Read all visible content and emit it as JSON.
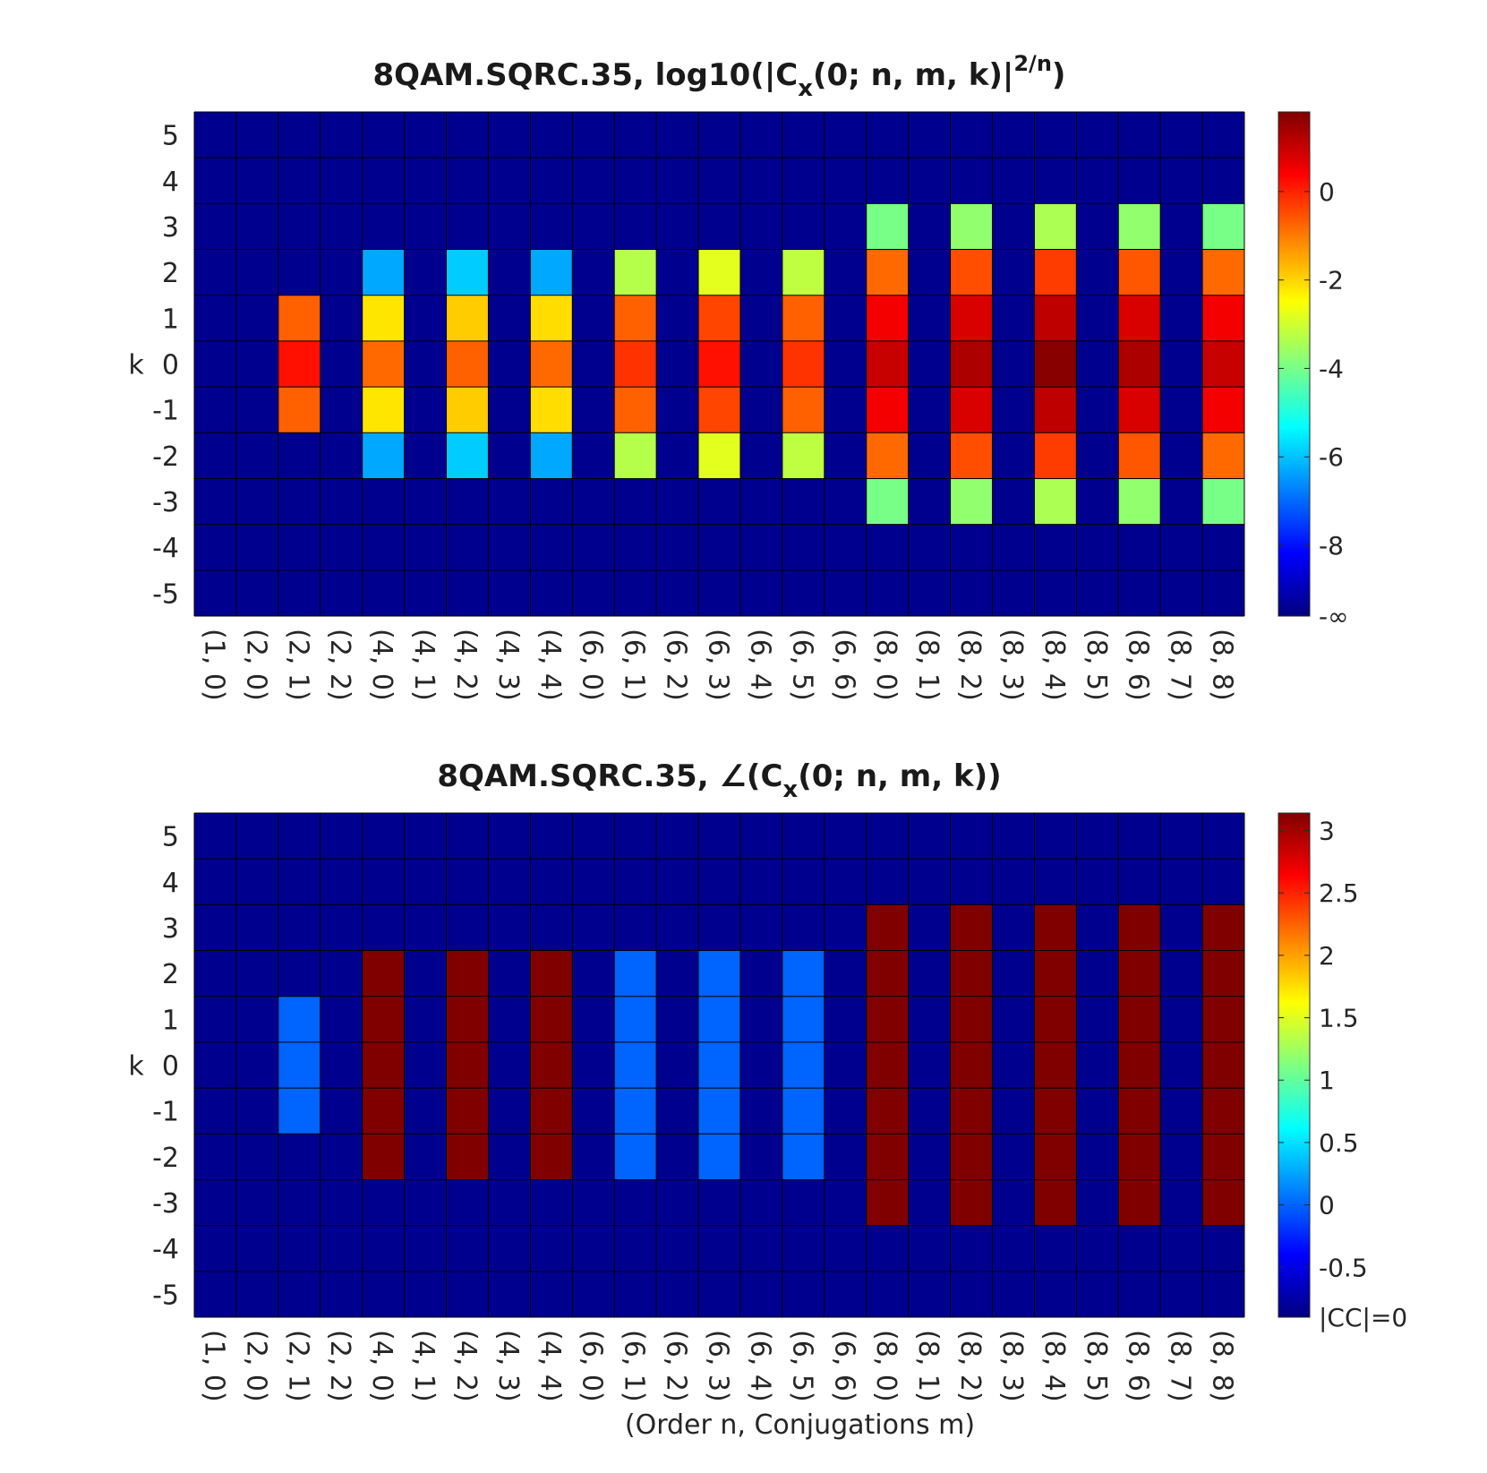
{
  "chart_data": [
    {
      "type": "heatmap",
      "title_prefix": "8QAM.SQRC.35, log10(|C",
      "title_sub": "x",
      "title_mid": "(0; n, m, k)|",
      "title_sup": "2/n",
      "title_suffix": ")",
      "xlabel": "",
      "ylabel": "k",
      "x_categories": [
        "(1, 0)",
        "(2, 0)",
        "(2, 1)",
        "(2, 2)",
        "(4, 0)",
        "(4, 1)",
        "(4, 2)",
        "(4, 3)",
        "(4, 4)",
        "(6, 0)",
        "(6, 1)",
        "(6, 2)",
        "(6, 3)",
        "(6, 4)",
        "(6, 5)",
        "(6, 6)",
        "(8, 0)",
        "(8, 1)",
        "(8, 2)",
        "(8, 3)",
        "(8, 4)",
        "(8, 5)",
        "(8, 6)",
        "(8, 7)",
        "(8, 8)"
      ],
      "y_categories": [
        "5",
        "4",
        "3",
        "2",
        "1",
        "0",
        "-1",
        "-2",
        "-3",
        "-4",
        "-5"
      ],
      "colorbar": {
        "colormap": "jet",
        "range": [
          -9.6,
          1.8
        ],
        "ticks": [
          0,
          -2,
          -4,
          -6,
          -8
        ],
        "tick_labels": [
          "0",
          "-2",
          "-4",
          "-6",
          "-8"
        ],
        "bottom_label": "-∞"
      },
      "null_color": "#00008f",
      "cells": [
        {
          "x": "(2, 1)",
          "k": 1,
          "value": -0.7
        },
        {
          "x": "(2, 1)",
          "k": 0,
          "value": 0.2
        },
        {
          "x": "(2, 1)",
          "k": -1,
          "value": -0.7
        },
        {
          "x": "(4, 0)",
          "k": 2,
          "value": -6.3
        },
        {
          "x": "(4, 0)",
          "k": 1,
          "value": -2.2
        },
        {
          "x": "(4, 0)",
          "k": 0,
          "value": -0.8
        },
        {
          "x": "(4, 0)",
          "k": -1,
          "value": -2.2
        },
        {
          "x": "(4, 0)",
          "k": -2,
          "value": -6.3
        },
        {
          "x": "(4, 2)",
          "k": 2,
          "value": -5.9
        },
        {
          "x": "(4, 2)",
          "k": 1,
          "value": -1.9
        },
        {
          "x": "(4, 2)",
          "k": 0,
          "value": -0.7
        },
        {
          "x": "(4, 2)",
          "k": -1,
          "value": -1.9
        },
        {
          "x": "(4, 2)",
          "k": -2,
          "value": -5.9
        },
        {
          "x": "(4, 4)",
          "k": 2,
          "value": -6.3
        },
        {
          "x": "(4, 4)",
          "k": 1,
          "value": -2.1
        },
        {
          "x": "(4, 4)",
          "k": 0,
          "value": -0.8
        },
        {
          "x": "(4, 4)",
          "k": -1,
          "value": -2.1
        },
        {
          "x": "(4, 4)",
          "k": -2,
          "value": -6.3
        },
        {
          "x": "(6, 1)",
          "k": 2,
          "value": -3.3
        },
        {
          "x": "(6, 1)",
          "k": 1,
          "value": -0.7
        },
        {
          "x": "(6, 1)",
          "k": 0,
          "value": -0.2
        },
        {
          "x": "(6, 1)",
          "k": -1,
          "value": -0.7
        },
        {
          "x": "(6, 1)",
          "k": -2,
          "value": -3.3
        },
        {
          "x": "(6, 3)",
          "k": 2,
          "value": -2.8
        },
        {
          "x": "(6, 3)",
          "k": 1,
          "value": -0.4
        },
        {
          "x": "(6, 3)",
          "k": 0,
          "value": 0.2
        },
        {
          "x": "(6, 3)",
          "k": -1,
          "value": -0.4
        },
        {
          "x": "(6, 3)",
          "k": -2,
          "value": -2.8
        },
        {
          "x": "(6, 5)",
          "k": 2,
          "value": -3.2
        },
        {
          "x": "(6, 5)",
          "k": 1,
          "value": -0.7
        },
        {
          "x": "(6, 5)",
          "k": 0,
          "value": -0.2
        },
        {
          "x": "(6, 5)",
          "k": -1,
          "value": -0.7
        },
        {
          "x": "(6, 5)",
          "k": -2,
          "value": -3.2
        },
        {
          "x": "(8, 0)",
          "k": 3,
          "value": -4.0
        },
        {
          "x": "(8, 0)",
          "k": 2,
          "value": -0.8
        },
        {
          "x": "(8, 0)",
          "k": 1,
          "value": 0.5
        },
        {
          "x": "(8, 0)",
          "k": 0,
          "value": 1.0
        },
        {
          "x": "(8, 0)",
          "k": -1,
          "value": 0.5
        },
        {
          "x": "(8, 0)",
          "k": -2,
          "value": -0.8
        },
        {
          "x": "(8, 0)",
          "k": -3,
          "value": -4.0
        },
        {
          "x": "(8, 2)",
          "k": 3,
          "value": -3.7
        },
        {
          "x": "(8, 2)",
          "k": 2,
          "value": -0.5
        },
        {
          "x": "(8, 2)",
          "k": 1,
          "value": 0.8
        },
        {
          "x": "(8, 2)",
          "k": 0,
          "value": 1.3
        },
        {
          "x": "(8, 2)",
          "k": -1,
          "value": 0.8
        },
        {
          "x": "(8, 2)",
          "k": -2,
          "value": -0.5
        },
        {
          "x": "(8, 2)",
          "k": -3,
          "value": -3.7
        },
        {
          "x": "(8, 4)",
          "k": 3,
          "value": -3.4
        },
        {
          "x": "(8, 4)",
          "k": 2,
          "value": -0.3
        },
        {
          "x": "(8, 4)",
          "k": 1,
          "value": 1.1
        },
        {
          "x": "(8, 4)",
          "k": 0,
          "value": 1.7
        },
        {
          "x": "(8, 4)",
          "k": -1,
          "value": 1.1
        },
        {
          "x": "(8, 4)",
          "k": -2,
          "value": -0.3
        },
        {
          "x": "(8, 4)",
          "k": -3,
          "value": -3.4
        },
        {
          "x": "(8, 6)",
          "k": 3,
          "value": -3.7
        },
        {
          "x": "(8, 6)",
          "k": 2,
          "value": -0.6
        },
        {
          "x": "(8, 6)",
          "k": 1,
          "value": 0.8
        },
        {
          "x": "(8, 6)",
          "k": 0,
          "value": 1.3
        },
        {
          "x": "(8, 6)",
          "k": -1,
          "value": 0.8
        },
        {
          "x": "(8, 6)",
          "k": -2,
          "value": -0.6
        },
        {
          "x": "(8, 6)",
          "k": -3,
          "value": -3.7
        },
        {
          "x": "(8, 8)",
          "k": 3,
          "value": -4.0
        },
        {
          "x": "(8, 8)",
          "k": 2,
          "value": -0.8
        },
        {
          "x": "(8, 8)",
          "k": 1,
          "value": 0.5
        },
        {
          "x": "(8, 8)",
          "k": 0,
          "value": 1.0
        },
        {
          "x": "(8, 8)",
          "k": -1,
          "value": 0.5
        },
        {
          "x": "(8, 8)",
          "k": -2,
          "value": -0.8
        },
        {
          "x": "(8, 8)",
          "k": -3,
          "value": -4.0
        }
      ]
    },
    {
      "type": "heatmap",
      "title_prefix": "8QAM.SQRC.35, ∠(C",
      "title_sub": "x",
      "title_mid": "(0; n, m, k))",
      "title_sup": "",
      "title_suffix": "",
      "xlabel": "(Order n, Conjugations m)",
      "ylabel": "k",
      "x_categories": [
        "(1, 0)",
        "(2, 0)",
        "(2, 1)",
        "(2, 2)",
        "(4, 0)",
        "(4, 1)",
        "(4, 2)",
        "(4, 3)",
        "(4, 4)",
        "(6, 0)",
        "(6, 1)",
        "(6, 2)",
        "(6, 3)",
        "(6, 4)",
        "(6, 5)",
        "(6, 6)",
        "(8, 0)",
        "(8, 1)",
        "(8, 2)",
        "(8, 3)",
        "(8, 4)",
        "(8, 5)",
        "(8, 6)",
        "(8, 7)",
        "(8, 8)"
      ],
      "y_categories": [
        "5",
        "4",
        "3",
        "2",
        "1",
        "0",
        "-1",
        "-2",
        "-3",
        "-4",
        "-5"
      ],
      "colorbar": {
        "colormap": "jet",
        "range": [
          -0.9,
          3.14
        ],
        "ticks": [
          3,
          2.5,
          2,
          1.5,
          1,
          0.5,
          0,
          -0.5
        ],
        "tick_labels": [
          "3",
          "2.5",
          "2",
          "1.5",
          "1",
          "0.5",
          "0",
          "-0.5"
        ],
        "bottom_label": "|CC|=0"
      },
      "null_color": "#00008f",
      "cells": [
        {
          "x": "(2, 1)",
          "k": 1,
          "value": 0
        },
        {
          "x": "(2, 1)",
          "k": 0,
          "value": 0
        },
        {
          "x": "(2, 1)",
          "k": -1,
          "value": 0
        },
        {
          "x": "(4, 0)",
          "k": 2,
          "value": 3.14
        },
        {
          "x": "(4, 0)",
          "k": 1,
          "value": 3.14
        },
        {
          "x": "(4, 0)",
          "k": 0,
          "value": 3.14
        },
        {
          "x": "(4, 0)",
          "k": -1,
          "value": 3.14
        },
        {
          "x": "(4, 0)",
          "k": -2,
          "value": 3.14
        },
        {
          "x": "(4, 2)",
          "k": 2,
          "value": 3.14
        },
        {
          "x": "(4, 2)",
          "k": 1,
          "value": 3.14
        },
        {
          "x": "(4, 2)",
          "k": 0,
          "value": 3.14
        },
        {
          "x": "(4, 2)",
          "k": -1,
          "value": 3.14
        },
        {
          "x": "(4, 2)",
          "k": -2,
          "value": 3.14
        },
        {
          "x": "(4, 4)",
          "k": 2,
          "value": 3.14
        },
        {
          "x": "(4, 4)",
          "k": 1,
          "value": 3.14
        },
        {
          "x": "(4, 4)",
          "k": 0,
          "value": 3.14
        },
        {
          "x": "(4, 4)",
          "k": -1,
          "value": 3.14
        },
        {
          "x": "(4, 4)",
          "k": -2,
          "value": 3.14
        },
        {
          "x": "(6, 1)",
          "k": 2,
          "value": 0
        },
        {
          "x": "(6, 1)",
          "k": 1,
          "value": 0
        },
        {
          "x": "(6, 1)",
          "k": 0,
          "value": 0
        },
        {
          "x": "(6, 1)",
          "k": -1,
          "value": 0
        },
        {
          "x": "(6, 1)",
          "k": -2,
          "value": 0
        },
        {
          "x": "(6, 3)",
          "k": 2,
          "value": 0
        },
        {
          "x": "(6, 3)",
          "k": 1,
          "value": 0
        },
        {
          "x": "(6, 3)",
          "k": 0,
          "value": 0
        },
        {
          "x": "(6, 3)",
          "k": -1,
          "value": 0
        },
        {
          "x": "(6, 3)",
          "k": -2,
          "value": 0
        },
        {
          "x": "(6, 5)",
          "k": 2,
          "value": 0
        },
        {
          "x": "(6, 5)",
          "k": 1,
          "value": 0
        },
        {
          "x": "(6, 5)",
          "k": 0,
          "value": 0
        },
        {
          "x": "(6, 5)",
          "k": -1,
          "value": 0
        },
        {
          "x": "(6, 5)",
          "k": -2,
          "value": 0
        },
        {
          "x": "(8, 0)",
          "k": 3,
          "value": 3.14
        },
        {
          "x": "(8, 0)",
          "k": 2,
          "value": 3.14
        },
        {
          "x": "(8, 0)",
          "k": 1,
          "value": 3.14
        },
        {
          "x": "(8, 0)",
          "k": 0,
          "value": 3.14
        },
        {
          "x": "(8, 0)",
          "k": -1,
          "value": 3.14
        },
        {
          "x": "(8, 0)",
          "k": -2,
          "value": 3.14
        },
        {
          "x": "(8, 0)",
          "k": -3,
          "value": 3.14
        },
        {
          "x": "(8, 2)",
          "k": 3,
          "value": 3.14
        },
        {
          "x": "(8, 2)",
          "k": 2,
          "value": 3.14
        },
        {
          "x": "(8, 2)",
          "k": 1,
          "value": 3.14
        },
        {
          "x": "(8, 2)",
          "k": 0,
          "value": 3.14
        },
        {
          "x": "(8, 2)",
          "k": -1,
          "value": 3.14
        },
        {
          "x": "(8, 2)",
          "k": -2,
          "value": 3.14
        },
        {
          "x": "(8, 2)",
          "k": -3,
          "value": 3.14
        },
        {
          "x": "(8, 4)",
          "k": 3,
          "value": 3.14
        },
        {
          "x": "(8, 4)",
          "k": 2,
          "value": 3.14
        },
        {
          "x": "(8, 4)",
          "k": 1,
          "value": 3.14
        },
        {
          "x": "(8, 4)",
          "k": 0,
          "value": 3.14
        },
        {
          "x": "(8, 4)",
          "k": -1,
          "value": 3.14
        },
        {
          "x": "(8, 4)",
          "k": -2,
          "value": 3.14
        },
        {
          "x": "(8, 4)",
          "k": -3,
          "value": 3.14
        },
        {
          "x": "(8, 6)",
          "k": 3,
          "value": 3.14
        },
        {
          "x": "(8, 6)",
          "k": 2,
          "value": 3.14
        },
        {
          "x": "(8, 6)",
          "k": 1,
          "value": 3.14
        },
        {
          "x": "(8, 6)",
          "k": 0,
          "value": 3.14
        },
        {
          "x": "(8, 6)",
          "k": -1,
          "value": 3.14
        },
        {
          "x": "(8, 6)",
          "k": -2,
          "value": 3.14
        },
        {
          "x": "(8, 6)",
          "k": -3,
          "value": 3.14
        },
        {
          "x": "(8, 8)",
          "k": 3,
          "value": 3.14
        },
        {
          "x": "(8, 8)",
          "k": 2,
          "value": 3.14
        },
        {
          "x": "(8, 8)",
          "k": 1,
          "value": 3.14
        },
        {
          "x": "(8, 8)",
          "k": 0,
          "value": 3.14
        },
        {
          "x": "(8, 8)",
          "k": -1,
          "value": 3.14
        },
        {
          "x": "(8, 8)",
          "k": -2,
          "value": 3.14
        },
        {
          "x": "(8, 8)",
          "k": -3,
          "value": 3.14
        }
      ]
    }
  ]
}
